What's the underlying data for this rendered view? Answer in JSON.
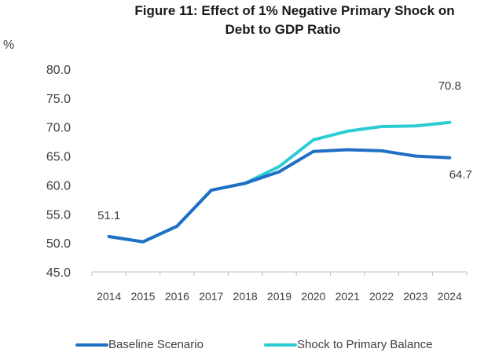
{
  "chart_data": {
    "type": "line",
    "title_lines": [
      "Figure 11: Effect of 1% Negative Primary Shock on",
      "Debt to GDP Ratio"
    ],
    "ylabel": "%",
    "ylim": [
      45.0,
      80.0
    ],
    "yticks": [
      "45.0",
      "50.0",
      "55.0",
      "60.0",
      "65.0",
      "70.0",
      "75.0",
      "80.0"
    ],
    "categories": [
      "2014",
      "2015",
      "2016",
      "2017",
      "2018",
      "2019",
      "2020",
      "2021",
      "2022",
      "2023",
      "2024"
    ],
    "series": [
      {
        "name": "Baseline Scenario",
        "color": "#1F6FC5",
        "values": [
          51.1,
          50.2,
          52.9,
          59.1,
          60.3,
          62.3,
          65.8,
          66.1,
          65.9,
          65.0,
          64.7
        ]
      },
      {
        "name": "Shock to Primary Balance",
        "color": "#2CCCD3",
        "values": [
          51.1,
          50.2,
          52.9,
          59.1,
          60.3,
          63.2,
          67.8,
          69.3,
          70.1,
          70.2,
          70.8
        ]
      }
    ],
    "annotations": [
      {
        "text": "51.1",
        "series": 0,
        "index": 0
      },
      {
        "text": "64.7",
        "series": 0,
        "index": 10
      },
      {
        "text": "70.8",
        "series": 1,
        "index": 10
      }
    ],
    "grid": false,
    "legend_position": "bottom"
  }
}
